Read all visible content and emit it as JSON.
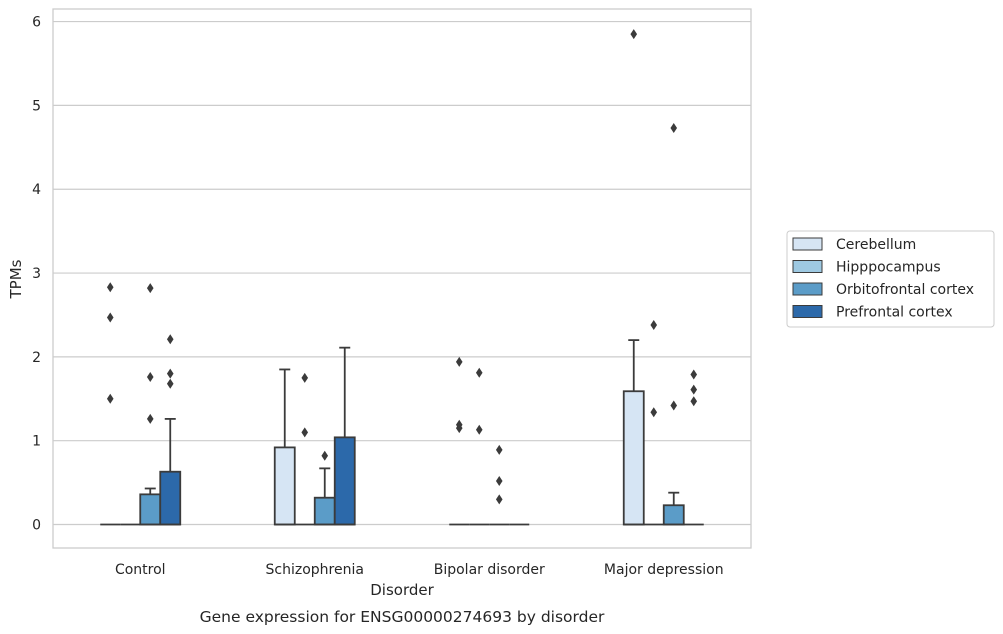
{
  "chart_data": {
    "type": "box",
    "caption": "Gene expression for ENSG00000274693 by disorder",
    "xlabel": "Disorder",
    "ylabel": "TPMs",
    "ylim": [
      -0.28,
      6.15
    ],
    "yticks": [
      0,
      1,
      2,
      3,
      4,
      5,
      6
    ],
    "grid": true,
    "legend_position": "right",
    "categories": [
      "Control",
      "Schizophrenia",
      "Bipolar disorder",
      "Major depression"
    ],
    "series": [
      {
        "name": "Cerebellum",
        "color": "#d6e5f4",
        "boxes": [
          {
            "q1": 0,
            "median": 0,
            "q3": 0,
            "whisker_low": 0,
            "whisker_high": 0,
            "outliers": [
              1.5,
              2.47,
              2.83
            ]
          },
          {
            "q1": 0,
            "median": 0,
            "q3": 0.92,
            "whisker_low": 0,
            "whisker_high": 1.85,
            "outliers": []
          },
          {
            "q1": 0,
            "median": 0,
            "q3": 0,
            "whisker_low": 0,
            "whisker_high": 0,
            "outliers": [
              1.15,
              1.19,
              1.94
            ]
          },
          {
            "q1": 0,
            "median": 0,
            "q3": 1.59,
            "whisker_low": 0,
            "whisker_high": 2.2,
            "outliers": [
              5.85
            ]
          }
        ]
      },
      {
        "name": "Hipppocampus",
        "color": "#9ec9e2",
        "boxes": [
          {
            "q1": 0,
            "median": 0,
            "q3": 0,
            "whisker_low": 0,
            "whisker_high": 0,
            "outliers": []
          },
          {
            "q1": 0,
            "median": 0,
            "q3": 0,
            "whisker_low": 0,
            "whisker_high": 0,
            "outliers": [
              1.1,
              1.75
            ]
          },
          {
            "q1": 0,
            "median": 0,
            "q3": 0,
            "whisker_low": 0,
            "whisker_high": 0,
            "outliers": [
              1.13,
              1.81
            ]
          },
          {
            "q1": 0,
            "median": 0,
            "q3": 0,
            "whisker_low": 0,
            "whisker_high": 0,
            "outliers": [
              1.34,
              2.38
            ]
          }
        ]
      },
      {
        "name": "Orbitofrontal cortex",
        "color": "#5b9cc8",
        "boxes": [
          {
            "q1": 0,
            "median": 0,
            "q3": 0.36,
            "whisker_low": 0,
            "whisker_high": 0.43,
            "outliers": [
              1.26,
              1.76,
              2.82
            ]
          },
          {
            "q1": 0,
            "median": 0,
            "q3": 0.32,
            "whisker_low": 0,
            "whisker_high": 0.67,
            "outliers": [
              0.82
            ]
          },
          {
            "q1": 0,
            "median": 0,
            "q3": 0,
            "whisker_low": 0,
            "whisker_high": 0,
            "outliers": [
              0.3,
              0.52,
              0.89
            ]
          },
          {
            "q1": 0,
            "median": 0,
            "q3": 0.23,
            "whisker_low": 0,
            "whisker_high": 0.38,
            "outliers": [
              1.42,
              4.73
            ]
          }
        ]
      },
      {
        "name": "Prefrontal cortex",
        "color": "#2c69aa",
        "boxes": [
          {
            "q1": 0,
            "median": 0,
            "q3": 0.63,
            "whisker_low": 0,
            "whisker_high": 1.26,
            "outliers": [
              1.68,
              1.8,
              2.21
            ]
          },
          {
            "q1": 0,
            "median": 0,
            "q3": 1.04,
            "whisker_low": 0,
            "whisker_high": 2.11,
            "outliers": []
          },
          {
            "q1": 0,
            "median": 0,
            "q3": 0,
            "whisker_low": 0,
            "whisker_high": 0,
            "outliers": []
          },
          {
            "q1": 0,
            "median": 0,
            "q3": 0,
            "whisker_low": 0,
            "whisker_high": 0,
            "outliers": [
              1.47,
              1.61,
              1.79
            ]
          }
        ]
      }
    ]
  }
}
